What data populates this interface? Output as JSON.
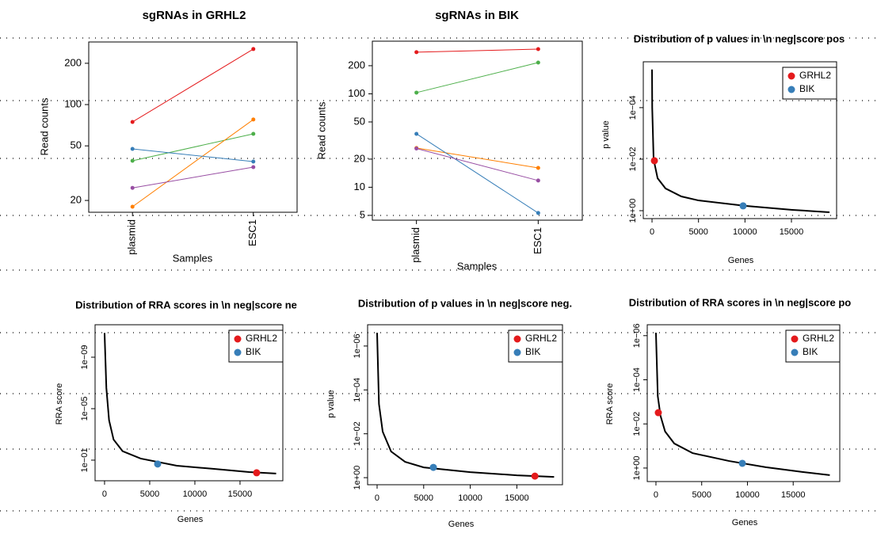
{
  "chart_data": [
    {
      "type": "line",
      "title": "sgRNAs in GRHL2",
      "xlabel": "Samples",
      "ylabel": "Read counts",
      "log_y": true,
      "categories": [
        "plasmid",
        "ESC1"
      ],
      "ylim": [
        16.4,
        286
      ],
      "yticks": [
        20,
        50,
        100,
        200
      ],
      "series": [
        {
          "color": "#e41a1c",
          "values": [
            74.7,
            254
          ]
        },
        {
          "color": "#4daf4a",
          "values": [
            38.9,
            61.2
          ]
        },
        {
          "color": "#ff7f00",
          "values": [
            18,
            77.8
          ]
        },
        {
          "color": "#377eb8",
          "values": [
            47.5,
            38.4
          ]
        },
        {
          "color": "#984ea3",
          "values": [
            24.7,
            35
          ]
        }
      ]
    },
    {
      "type": "line",
      "title": "sgRNAs in BIK",
      "xlabel": "Samples",
      "ylabel": "Read counts",
      "log_y": true,
      "categories": [
        "plasmid",
        "ESC1"
      ],
      "ylim": [
        4.44,
        366
      ],
      "yticks": [
        5,
        10,
        20,
        50,
        100,
        200
      ],
      "series": [
        {
          "color": "#e41a1c",
          "values": [
            279,
            301
          ]
        },
        {
          "color": "#4daf4a",
          "values": [
            103,
            216
          ]
        },
        {
          "color": "#ff7f00",
          "values": [
            26.3,
            16.1
          ]
        },
        {
          "color": "#377eb8",
          "values": [
            37.3,
            5.3
          ]
        },
        {
          "color": "#984ea3",
          "values": [
            26,
            11.8
          ]
        }
      ]
    },
    {
      "type": "line",
      "title": "Distribution of p values in \\n neg|score pos",
      "xlabel": "Genes",
      "ylabel": "p value",
      "log_y": true,
      "xlim": [
        -940,
        19860
      ],
      "xticks": [
        0,
        5000,
        10000,
        15000
      ],
      "ylim": [
        2.03,
        1.66e-06
      ],
      "yticks": [
        {
          "value": 0.0001,
          "label": "1e−04"
        },
        {
          "value": 0.01,
          "label": "1e−02"
        },
        {
          "value": 1,
          "label": "1e+00"
        }
      ],
      "series": [
        {
          "color": "#000000",
          "x": [
            0,
            20,
            170,
            600,
            1450,
            3150,
            5000,
            10000,
            15100,
            19100
          ],
          "values": [
            3.3e-06,
            0.0001,
            0.01,
            0.055,
            0.137,
            0.28,
            0.4,
            0.65,
            0.93,
            1.15
          ]
        }
      ],
      "points": [
        {
          "name": "GRHL2",
          "color": "#e41a1c",
          "x": 255,
          "value": 0.0115
        },
        {
          "name": "BIK",
          "color": "#377eb8",
          "x": 9800,
          "value": 0.65
        }
      ],
      "legend": "top-right"
    },
    {
      "type": "line",
      "title": "Distribution of RRA scores in \\n neg|score ne",
      "xlabel": "Genes",
      "ylabel": "RRA score",
      "log_y": true,
      "xlim": [
        -1050,
        19740
      ],
      "xticks": [
        0,
        5000,
        10000,
        15000
      ],
      "ylim": [
        4,
        3e-12
      ],
      "yticks": [
        {
          "value": 1e-09,
          "label": "1e−09"
        },
        {
          "value": 1e-05,
          "label": "1e−05"
        },
        {
          "value": 0.1,
          "label": "1e−01"
        }
      ],
      "series": [
        {
          "color": "#000000",
          "x": [
            0,
            200,
            500,
            1000,
            2000,
            4000,
            8000,
            12000,
            16000,
            19000
          ],
          "values": [
            1.3e-11,
            2.5e-07,
            8e-05,
            0.0025,
            0.02,
            0.075,
            0.27,
            0.47,
            0.84,
            1.1
          ]
        }
      ],
      "points": [
        {
          "name": "GRHL2",
          "color": "#e41a1c",
          "x": 16840,
          "value": 0.96
        },
        {
          "name": "BIK",
          "color": "#377eb8",
          "x": 5880,
          "value": 0.2
        }
      ],
      "legend": "top-right"
    },
    {
      "type": "line",
      "title": "Distribution of p values in \\n neg|score neg.",
      "xlabel": "Genes",
      "ylabel": "p value",
      "log_y": true,
      "xlim": [
        -1020,
        19900
      ],
      "xticks": [
        0,
        5000,
        10000,
        15000
      ],
      "ylim": [
        2.1,
        1.07e-07
      ],
      "yticks": [
        {
          "value": 1e-06,
          "label": "1e−06"
        },
        {
          "value": 0.0001,
          "label": "1e−04"
        },
        {
          "value": 0.01,
          "label": "1e−02"
        },
        {
          "value": 1,
          "label": "1e+00"
        }
      ],
      "series": [
        {
          "color": "#000000",
          "x": [
            0,
            200,
            600,
            1500,
            3000,
            5000,
            10000,
            15000,
            19000
          ],
          "values": [
            2.5e-07,
            0.00044,
            0.008,
            0.064,
            0.19,
            0.34,
            0.56,
            0.78,
            0.92
          ]
        }
      ],
      "points": [
        {
          "name": "GRHL2",
          "color": "#e41a1c",
          "x": 16940,
          "value": 0.85
        },
        {
          "name": "BIK",
          "color": "#377eb8",
          "x": 6040,
          "value": 0.34
        }
      ],
      "legend": "top-right"
    },
    {
      "type": "line",
      "title": "Distribution of RRA scores in \\n neg|score po",
      "xlabel": "Genes",
      "ylabel": "RRA score",
      "log_y": true,
      "xlim": [
        -950,
        20090
      ],
      "xticks": [
        0,
        5000,
        10000,
        15000
      ],
      "ylim": [
        4.1,
        3.2e-07
      ],
      "yticks": [
        {
          "value": 1e-06,
          "label": "1e−06"
        },
        {
          "value": 0.0001,
          "label": "1e−04"
        },
        {
          "value": 0.01,
          "label": "1e−02"
        },
        {
          "value": 1,
          "label": "1e+00"
        }
      ],
      "series": [
        {
          "color": "#000000",
          "x": [
            0,
            200,
            500,
            1000,
            2000,
            4000,
            8000,
            12000,
            16000,
            19000
          ],
          "values": [
            7.4e-07,
            0.00055,
            0.0043,
            0.022,
            0.077,
            0.21,
            0.48,
            0.92,
            1.5,
            2.1
          ]
        }
      ],
      "points": [
        {
          "name": "GRHL2",
          "color": "#e41a1c",
          "x": 260,
          "value": 0.0031
        },
        {
          "name": "BIK",
          "color": "#377eb8",
          "x": 9440,
          "value": 0.61
        }
      ],
      "legend": "top-right"
    }
  ]
}
